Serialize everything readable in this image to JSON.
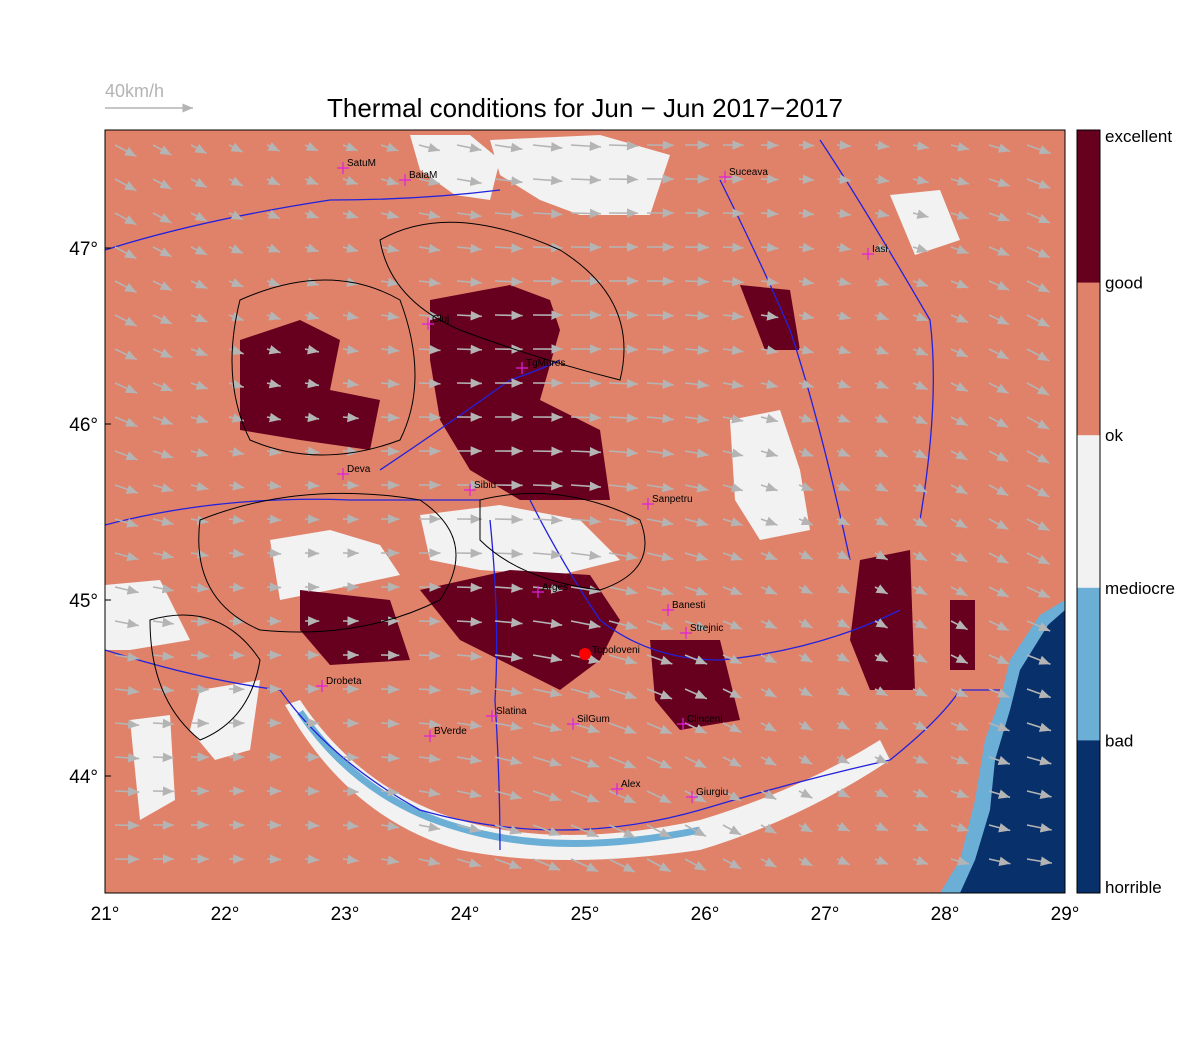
{
  "title": "Thermal conditions for Jun − Jun  2017−2017",
  "wind_legend": "40km/h",
  "colorbar": {
    "labels": [
      "excellent",
      "good",
      "ok",
      "mediocre",
      "bad",
      "horrible"
    ],
    "colors": [
      "#67001f",
      "#e0826a",
      "#f2f2f2",
      "#6baed6",
      "#08306b"
    ]
  },
  "lon_ticks": [
    "21°",
    "22°",
    "23°",
    "24°",
    "25°",
    "26°",
    "27°",
    "28°",
    "29°"
  ],
  "lat_ticks": [
    "47°",
    "46°",
    "45°",
    "44°"
  ],
  "cities": [
    "SatuM",
    "BaiaM",
    "Suceava",
    "Iasi",
    "Cluj",
    "TgMures",
    "Deva",
    "Sibiu",
    "Sanpetru",
    "Arges",
    "Banesti",
    "Strejnic",
    "Drobeta",
    "Slatina",
    "SilGum",
    "Clinceni",
    "BVerde",
    "Alex",
    "Giurgiu"
  ],
  "site": "Topoloveni"
}
